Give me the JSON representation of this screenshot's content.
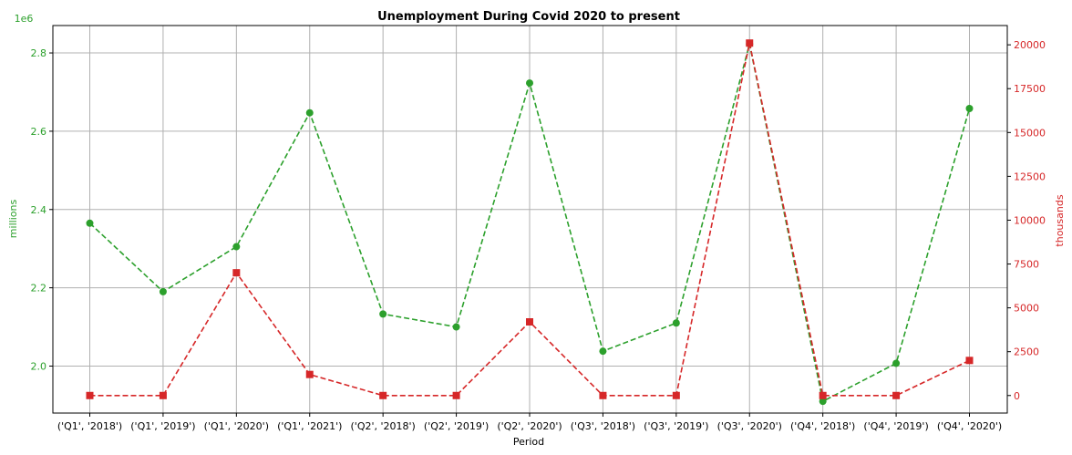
{
  "chart_data": {
    "type": "line",
    "title": "Unemployment During Covid 2020 to present",
    "xlabel": "Period",
    "categories": [
      "('Q1', '2018')",
      "('Q1', '2019')",
      "('Q1', '2020')",
      "('Q1', '2021')",
      "('Q2', '2018')",
      "('Q2', '2019')",
      "('Q2', '2020')",
      "('Q3', '2018')",
      "('Q3', '2019')",
      "('Q3', '2020')",
      "('Q4', '2018')",
      "('Q4', '2019')",
      "('Q4', '2020')"
    ],
    "left_axis": {
      "label": "millions",
      "offset_label": "1e6",
      "color": "#2ca02c",
      "ylim": [
        1.88,
        2.87
      ],
      "ticks": [
        2.0,
        2.2,
        2.4,
        2.6,
        2.8
      ],
      "tick_labels": [
        "2.0",
        "2.2",
        "2.4",
        "2.6",
        "2.8"
      ]
    },
    "right_axis": {
      "label": "thousands",
      "color": "#d62728",
      "ylim": [
        -1000,
        21100
      ],
      "ticks": [
        0,
        2500,
        5000,
        7500,
        10000,
        12500,
        15000,
        17500,
        20000
      ],
      "tick_labels": [
        "0",
        "2500",
        "5000",
        "7500",
        "10000",
        "12500",
        "15000",
        "17500",
        "20000"
      ]
    },
    "series": [
      {
        "axis": "left",
        "color": "#2ca02c",
        "marker": "circle",
        "linestyle": "dashed",
        "values": [
          2.365,
          2.19,
          2.305,
          2.647,
          2.133,
          2.1,
          2.723,
          2.038,
          2.11,
          2.823,
          1.91,
          2.007,
          2.658
        ]
      },
      {
        "axis": "right",
        "color": "#d62728",
        "marker": "square",
        "linestyle": "dashed",
        "values": [
          0,
          0,
          7000,
          1200,
          0,
          0,
          4200,
          0,
          0,
          20100,
          0,
          0,
          2000
        ]
      }
    ],
    "grid": true
  }
}
